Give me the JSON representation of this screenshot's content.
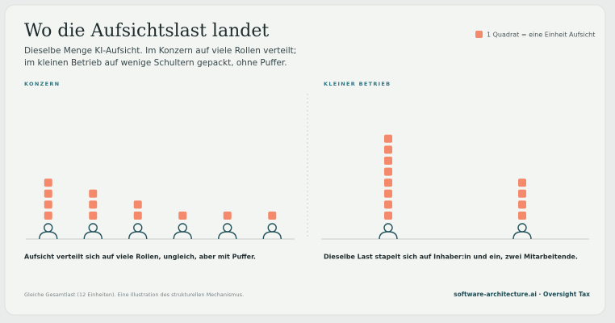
{
  "title": "Wo die Aufsichtslast landet",
  "subtitle_lines": [
    "Dieselbe Menge KI-Aufsicht. Im Konzern auf viele Rollen verteilt;",
    "im kleinen Betrieb auf wenige Schultern gepackt, ohne Puffer."
  ],
  "legend": {
    "label": "1 Quadrat = eine Einheit Aufsicht",
    "color": "#f4896b"
  },
  "chart_data": [
    {
      "type": "pictogram",
      "title": "KONZERN",
      "categories": [
        null,
        null,
        null,
        null,
        null,
        null
      ],
      "values": [
        4,
        3,
        2,
        1,
        1,
        1
      ],
      "color": "#f4896b",
      "caption": "Aufsicht verteilt sich auf viele Rollen, ungleich, aber mit Puffer."
    },
    {
      "type": "pictogram",
      "title": "KLEINER BETRIEB",
      "categories": [
        null,
        null
      ],
      "values": [
        8,
        4
      ],
      "color": "#f4896b",
      "caption": "Dieselbe Last stapelt sich auf Inhaber:in und ein, zwei Mitarbeitende."
    }
  ],
  "footer": {
    "note": "Gleiche Gesamtlast (12 Einheiten). Eine Illustration des strukturellen Mechanismus.",
    "source": "software-architecture.ai · Oversight Tax"
  }
}
